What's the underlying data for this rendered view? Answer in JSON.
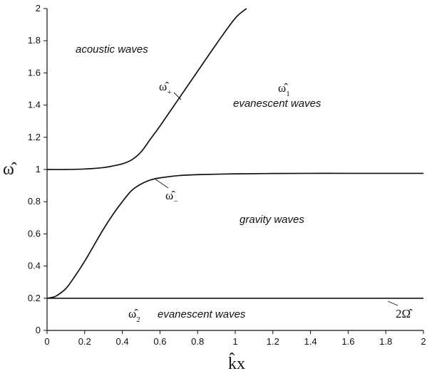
{
  "chart_data": {
    "type": "line",
    "xlabel": "k̂x",
    "ylabel": "ω̂",
    "xlim": [
      0,
      2
    ],
    "ylim": [
      0,
      2
    ],
    "xticks": [
      "0",
      "0.2",
      "0.4",
      "0.6",
      "0.8",
      "1",
      "1.2",
      "1.4",
      "1.6",
      "1.8",
      "2"
    ],
    "yticks": [
      "0",
      "0.2",
      "0.4",
      "0.6",
      "0.8",
      "1",
      "1.2",
      "1.4",
      "1.6",
      "1.8",
      "2"
    ],
    "grid": false,
    "series": [
      {
        "name": "ω̂+",
        "x": [
          0,
          0.1,
          0.2,
          0.3,
          0.35,
          0.4,
          0.45,
          0.5,
          0.55,
          0.6,
          0.7,
          0.8,
          0.9,
          1.0,
          1.06
        ],
        "y": [
          1.0,
          1.0,
          1.003,
          1.012,
          1.022,
          1.035,
          1.06,
          1.11,
          1.19,
          1.27,
          1.44,
          1.61,
          1.78,
          1.94,
          2.0
        ]
      },
      {
        "name": "ω̂−",
        "x": [
          0,
          0.025,
          0.05,
          0.1,
          0.15,
          0.2,
          0.25,
          0.3,
          0.35,
          0.4,
          0.45,
          0.5,
          0.55,
          0.6,
          0.7,
          0.8,
          1.0,
          1.2,
          1.4,
          1.6,
          1.8,
          2.0
        ],
        "y": [
          0.2,
          0.205,
          0.215,
          0.26,
          0.34,
          0.43,
          0.53,
          0.63,
          0.72,
          0.8,
          0.87,
          0.91,
          0.935,
          0.948,
          0.962,
          0.968,
          0.973,
          0.975,
          0.976,
          0.976,
          0.976,
          0.976
        ]
      },
      {
        "name": "2Ω̂",
        "x": [
          0,
          2.0
        ],
        "y": [
          0.2,
          0.2
        ]
      }
    ],
    "annotations": {
      "acoustic": "acoustic waves",
      "omega_plus": "ω̂",
      "omega_plus_sub": "+",
      "omega1": "ω̂",
      "omega1_sub": "1",
      "evanescent_top": "evanescent waves",
      "omega_minus": "ω̂",
      "omega_minus_sub": "−",
      "gravity": "gravity waves",
      "omega2": "ω̂",
      "omega2_sub": "2",
      "evanescent_bottom": "evanescent waves",
      "two_omega": "2Ω̂"
    }
  }
}
